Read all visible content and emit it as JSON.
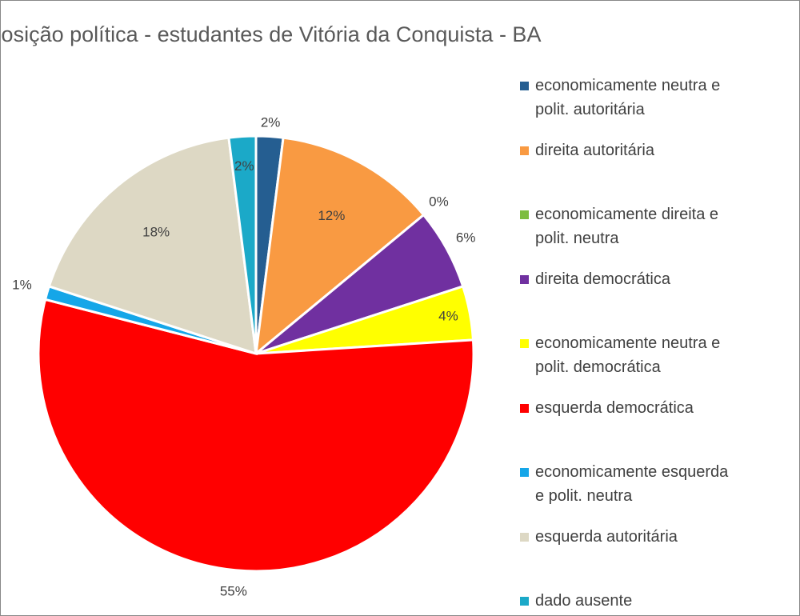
{
  "chart_data": {
    "type": "pie",
    "title": "Posição política - estudantes de Vitória da Conquista - BA",
    "categories": [
      "economicamente neutra e polit. autoritária",
      "direita autoritária",
      "economicamente direita e polit. neutra",
      "direita democrática",
      "economicamente neutra e polit. democrática",
      "esquerda democrática",
      "economicamente esquerda e polit. neutra",
      "esquerda autoritária",
      "dado ausente"
    ],
    "values": [
      2,
      12,
      0,
      6,
      4,
      55,
      1,
      18,
      2
    ],
    "value_labels": [
      "2%",
      "12%",
      "0%",
      "6%",
      "4%",
      "55%",
      "1%",
      "18%",
      "2%"
    ],
    "colors": [
      "#255e91",
      "#f99a42",
      "#7dbd3e",
      "#7030a0",
      "#ffff00",
      "#ff0000",
      "#15a6e8",
      "#ddd8c4",
      "#1ba9c8"
    ],
    "legend": "right"
  }
}
